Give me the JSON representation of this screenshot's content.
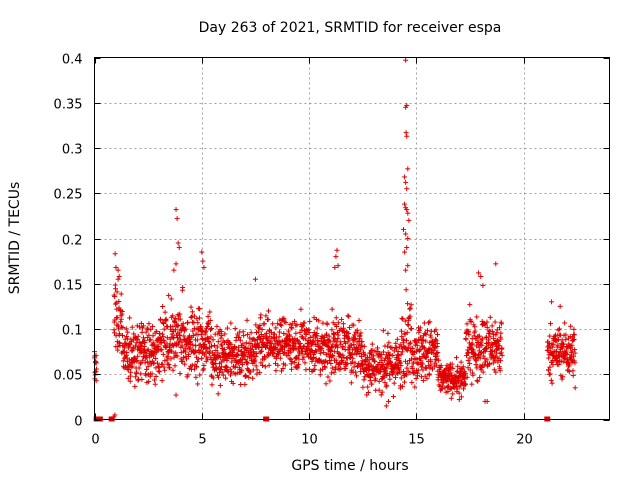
{
  "chart_data": {
    "type": "scatter",
    "title": "Day 263 of 2021, SRMTID for receiver espa",
    "xlabel": "GPS time / hours",
    "ylabel": "SRMTID / TECUs",
    "xlim": [
      0,
      24
    ],
    "ylim": [
      0,
      0.4
    ],
    "xticks": [
      0,
      5,
      10,
      15,
      20
    ],
    "xtick_labels": [
      "0",
      "5",
      "10",
      "15",
      "20"
    ],
    "yticks": [
      0,
      0.05,
      0.1,
      0.15,
      0.2,
      0.25,
      0.3,
      0.35,
      0.4
    ],
    "ytick_labels": [
      "0",
      "0.05",
      "0.1",
      "0.15",
      "0.2",
      "0.25",
      "0.3",
      "0.35",
      "0.4"
    ],
    "grid": true,
    "marker": "plus",
    "color": "#e00000",
    "zero_markers_x": [
      0.1,
      0.25,
      0.8,
      8.0,
      21.1
    ],
    "series": [
      {
        "name": "SRMTID",
        "segments": [
          {
            "x_start": 0.0,
            "x_end": 0.1,
            "level": 0.06,
            "spread": 0.015
          },
          {
            "x_start": 0.9,
            "x_end": 1.3,
            "level": 0.11,
            "spread": 0.05
          },
          {
            "x_start": 1.3,
            "x_end": 3.0,
            "level": 0.075,
            "spread": 0.03
          },
          {
            "x_start": 3.0,
            "x_end": 4.2,
            "level": 0.09,
            "spread": 0.035
          },
          {
            "x_start": 4.2,
            "x_end": 5.5,
            "level": 0.085,
            "spread": 0.035
          },
          {
            "x_start": 5.5,
            "x_end": 7.5,
            "level": 0.07,
            "spread": 0.025
          },
          {
            "x_start": 7.5,
            "x_end": 10.0,
            "level": 0.085,
            "spread": 0.025
          },
          {
            "x_start": 10.0,
            "x_end": 12.5,
            "level": 0.08,
            "spread": 0.03
          },
          {
            "x_start": 12.5,
            "x_end": 14.3,
            "level": 0.06,
            "spread": 0.025
          },
          {
            "x_start": 14.3,
            "x_end": 14.8,
            "level": 0.09,
            "spread": 0.04
          },
          {
            "x_start": 14.8,
            "x_end": 16.0,
            "level": 0.075,
            "spread": 0.03
          },
          {
            "x_start": 16.0,
            "x_end": 17.3,
            "level": 0.045,
            "spread": 0.015
          },
          {
            "x_start": 17.3,
            "x_end": 19.0,
            "level": 0.08,
            "spread": 0.03
          },
          {
            "x_start": 21.1,
            "x_end": 22.4,
            "level": 0.075,
            "spread": 0.025
          }
        ],
        "highlights": [
          {
            "x": 1.0,
            "y": 0.168
          },
          {
            "x": 1.1,
            "y": 0.165
          },
          {
            "x": 1.15,
            "y": 0.158
          },
          {
            "x": 3.8,
            "y": 0.232
          },
          {
            "x": 3.85,
            "y": 0.222
          },
          {
            "x": 3.9,
            "y": 0.195
          },
          {
            "x": 3.95,
            "y": 0.19
          },
          {
            "x": 3.8,
            "y": 0.172
          },
          {
            "x": 3.7,
            "y": 0.165
          },
          {
            "x": 5.0,
            "y": 0.185
          },
          {
            "x": 5.05,
            "y": 0.175
          },
          {
            "x": 5.1,
            "y": 0.168
          },
          {
            "x": 7.5,
            "y": 0.155
          },
          {
            "x": 11.3,
            "y": 0.187
          },
          {
            "x": 11.25,
            "y": 0.18
          },
          {
            "x": 11.2,
            "y": 0.168
          },
          {
            "x": 11.35,
            "y": 0.17
          },
          {
            "x": 14.5,
            "y": 0.397
          },
          {
            "x": 14.55,
            "y": 0.347
          },
          {
            "x": 14.5,
            "y": 0.345
          },
          {
            "x": 14.52,
            "y": 0.317
          },
          {
            "x": 14.55,
            "y": 0.313
          },
          {
            "x": 14.6,
            "y": 0.277
          },
          {
            "x": 14.45,
            "y": 0.268
          },
          {
            "x": 14.5,
            "y": 0.262
          },
          {
            "x": 14.55,
            "y": 0.255
          },
          {
            "x": 14.45,
            "y": 0.238
          },
          {
            "x": 14.5,
            "y": 0.234
          },
          {
            "x": 14.55,
            "y": 0.232
          },
          {
            "x": 14.6,
            "y": 0.228
          },
          {
            "x": 14.65,
            "y": 0.22
          },
          {
            "x": 14.4,
            "y": 0.21
          },
          {
            "x": 14.5,
            "y": 0.205
          },
          {
            "x": 14.6,
            "y": 0.2
          },
          {
            "x": 14.55,
            "y": 0.19
          },
          {
            "x": 14.45,
            "y": 0.185
          },
          {
            "x": 14.6,
            "y": 0.17
          },
          {
            "x": 14.5,
            "y": 0.165
          },
          {
            "x": 17.9,
            "y": 0.162
          },
          {
            "x": 18.0,
            "y": 0.158
          },
          {
            "x": 18.7,
            "y": 0.172
          },
          {
            "x": 18.1,
            "y": 0.148
          },
          {
            "x": 3.8,
            "y": 0.027
          },
          {
            "x": 13.6,
            "y": 0.015
          },
          {
            "x": 13.7,
            "y": 0.02
          },
          {
            "x": 17.0,
            "y": 0.022
          },
          {
            "x": 17.1,
            "y": 0.025
          },
          {
            "x": 18.2,
            "y": 0.02
          },
          {
            "x": 18.3,
            "y": 0.02
          },
          {
            "x": 0.02,
            "y": 0.045
          },
          {
            "x": 0.0,
            "y": 0.075
          },
          {
            "x": 0.9,
            "y": 0.003
          },
          {
            "x": 0.95,
            "y": 0.005
          },
          {
            "x": 22.4,
            "y": 0.035
          },
          {
            "x": 21.7,
            "y": 0.125
          },
          {
            "x": 21.3,
            "y": 0.13
          }
        ]
      }
    ]
  }
}
